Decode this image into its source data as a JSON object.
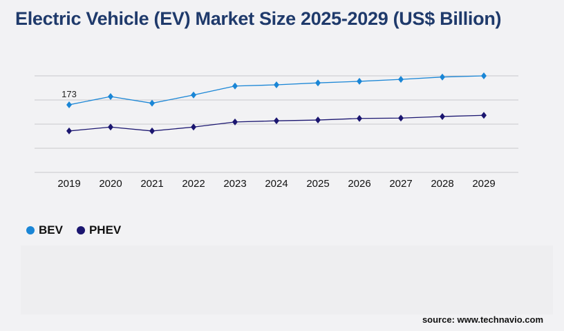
{
  "title": "Electric Vehicle (EV) Market Size 2025-2029 (US$ Billion)",
  "source": "source: www.technavio.com",
  "chart_data": {
    "type": "line",
    "title": "Electric Vehicle (EV) Market Size 2025-2029 (US$ Billion)",
    "categories": [
      "2019",
      "2020",
      "2021",
      "2022",
      "2023",
      "2024",
      "2025",
      "2026",
      "2027",
      "2028",
      "2029"
    ],
    "ylim": [
      0,
      247
    ],
    "grid": true,
    "legend_position": "bottom-left",
    "series": [
      {
        "name": "BEV",
        "color": "#1a86d6",
        "values": [
          173,
          194,
          177,
          198,
          221,
          224,
          229,
          233,
          238,
          244,
          247
        ]
      },
      {
        "name": "PHEV",
        "color": "#1b1670",
        "values": [
          106,
          116,
          106,
          116,
          129,
          132,
          134,
          138,
          139,
          143,
          146
        ]
      }
    ],
    "annotations": [
      {
        "series": "BEV",
        "category": "2019",
        "label": "173"
      }
    ]
  }
}
